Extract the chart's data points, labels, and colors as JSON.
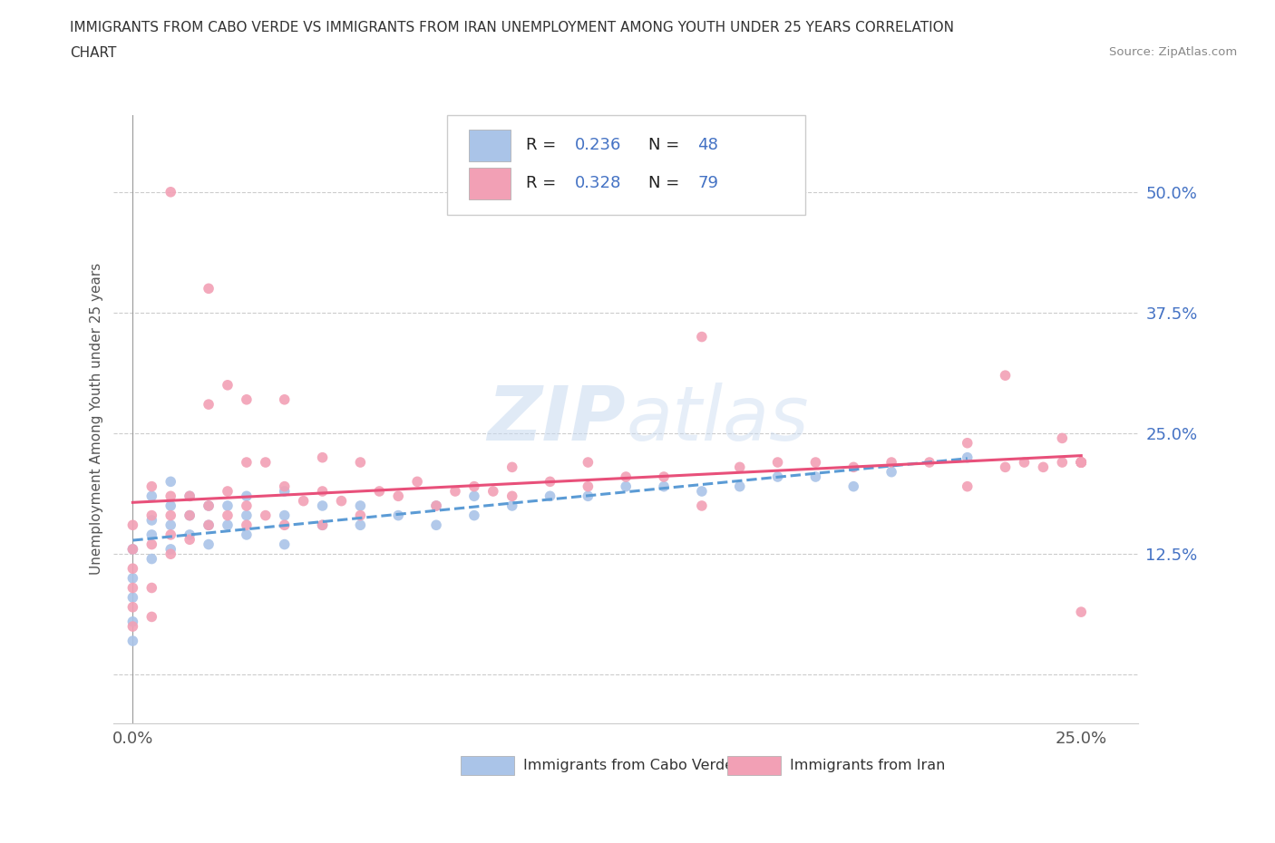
{
  "title_line1": "IMMIGRANTS FROM CABO VERDE VS IMMIGRANTS FROM IRAN UNEMPLOYMENT AMONG YOUTH UNDER 25 YEARS CORRELATION",
  "title_line2": "CHART",
  "source": "Source: ZipAtlas.com",
  "ylabel": "Unemployment Among Youth under 25 years",
  "xlim": [
    -0.005,
    0.265
  ],
  "ylim": [
    -0.05,
    0.58
  ],
  "yticks": [
    0.0,
    0.125,
    0.25,
    0.375,
    0.5
  ],
  "ytick_labels": [
    "",
    "12.5%",
    "25.0%",
    "37.5%",
    "50.0%"
  ],
  "xticks": [
    0.0,
    0.25
  ],
  "xtick_labels": [
    "0.0%",
    "25.0%"
  ],
  "R_cabo": 0.236,
  "N_cabo": 48,
  "R_iran": 0.328,
  "N_iran": 79,
  "cabo_color": "#aac4e8",
  "iran_color": "#f2a0b5",
  "cabo_line_color": "#5b9bd5",
  "iran_line_color": "#e8507a",
  "watermark": "ZIPatlas",
  "cabo_x": [
    0.0,
    0.0,
    0.0,
    0.0,
    0.0,
    0.005,
    0.005,
    0.005,
    0.005,
    0.01,
    0.01,
    0.01,
    0.01,
    0.015,
    0.015,
    0.015,
    0.02,
    0.02,
    0.02,
    0.025,
    0.025,
    0.03,
    0.03,
    0.03,
    0.04,
    0.04,
    0.04,
    0.05,
    0.05,
    0.06,
    0.06,
    0.07,
    0.08,
    0.08,
    0.09,
    0.09,
    0.1,
    0.11,
    0.12,
    0.13,
    0.14,
    0.15,
    0.16,
    0.17,
    0.18,
    0.19,
    0.2,
    0.22
  ],
  "cabo_y": [
    0.035,
    0.055,
    0.08,
    0.1,
    0.13,
    0.12,
    0.145,
    0.16,
    0.185,
    0.13,
    0.155,
    0.175,
    0.2,
    0.145,
    0.165,
    0.185,
    0.135,
    0.155,
    0.175,
    0.155,
    0.175,
    0.145,
    0.165,
    0.185,
    0.135,
    0.165,
    0.19,
    0.155,
    0.175,
    0.155,
    0.175,
    0.165,
    0.155,
    0.175,
    0.165,
    0.185,
    0.175,
    0.185,
    0.185,
    0.195,
    0.195,
    0.19,
    0.195,
    0.205,
    0.205,
    0.195,
    0.21,
    0.225
  ],
  "iran_x": [
    0.0,
    0.0,
    0.0,
    0.0,
    0.0,
    0.0,
    0.005,
    0.005,
    0.005,
    0.005,
    0.005,
    0.01,
    0.01,
    0.01,
    0.01,
    0.01,
    0.015,
    0.015,
    0.015,
    0.02,
    0.02,
    0.02,
    0.02,
    0.025,
    0.025,
    0.025,
    0.03,
    0.03,
    0.03,
    0.03,
    0.035,
    0.035,
    0.04,
    0.04,
    0.04,
    0.045,
    0.05,
    0.05,
    0.05,
    0.055,
    0.06,
    0.06,
    0.065,
    0.07,
    0.075,
    0.08,
    0.085,
    0.09,
    0.095,
    0.1,
    0.1,
    0.11,
    0.12,
    0.12,
    0.13,
    0.14,
    0.15,
    0.15,
    0.16,
    0.17,
    0.18,
    0.19,
    0.2,
    0.21,
    0.22,
    0.22,
    0.23,
    0.23,
    0.235,
    0.24,
    0.245,
    0.245,
    0.25,
    0.25,
    0.25,
    0.25,
    0.25,
    0.25,
    0.25
  ],
  "iran_y": [
    0.05,
    0.07,
    0.09,
    0.11,
    0.13,
    0.155,
    0.06,
    0.09,
    0.135,
    0.165,
    0.195,
    0.125,
    0.145,
    0.165,
    0.185,
    0.5,
    0.14,
    0.165,
    0.185,
    0.155,
    0.175,
    0.28,
    0.4,
    0.165,
    0.19,
    0.3,
    0.155,
    0.175,
    0.22,
    0.285,
    0.165,
    0.22,
    0.155,
    0.195,
    0.285,
    0.18,
    0.155,
    0.19,
    0.225,
    0.18,
    0.165,
    0.22,
    0.19,
    0.185,
    0.2,
    0.175,
    0.19,
    0.195,
    0.19,
    0.185,
    0.215,
    0.2,
    0.195,
    0.22,
    0.205,
    0.205,
    0.175,
    0.35,
    0.215,
    0.22,
    0.22,
    0.215,
    0.22,
    0.22,
    0.195,
    0.24,
    0.215,
    0.31,
    0.22,
    0.215,
    0.22,
    0.245,
    0.22,
    0.22,
    0.22,
    0.22,
    0.22,
    0.22,
    0.065
  ]
}
